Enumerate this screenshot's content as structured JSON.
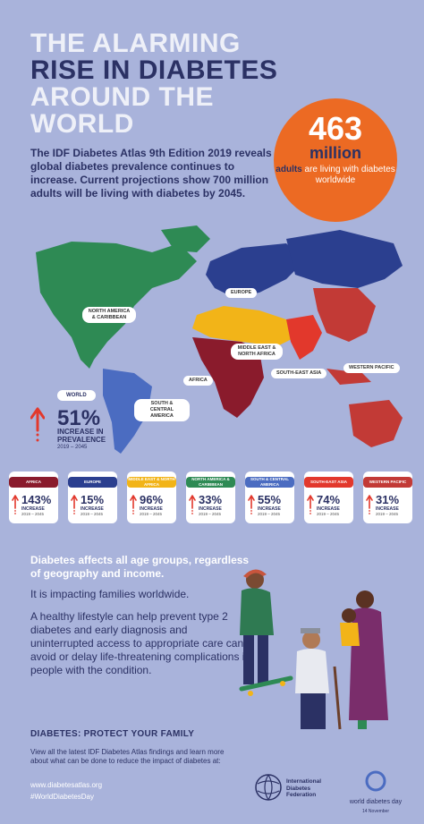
{
  "title": {
    "line1": "THE ALARMING",
    "line2": "RISE IN DIABETES",
    "line3": "AROUND THE",
    "line4": "WORLD"
  },
  "intro": "The IDF Diabetes Atlas 9th Edition 2019 reveals global diabetes prevalence continues to increase. Current projections show 700 million adults will be living with diabetes by 2045.",
  "stat": {
    "number": "463",
    "unit": "million",
    "desc_strong": "adults",
    "desc": "are living with diabetes worldwide"
  },
  "map_labels": {
    "north_america": "NORTH AMERICA & CARIBBEAN",
    "europe": "EUROPE",
    "mena": "MIDDLE EAST & NORTH AFRICA",
    "africa": "AFRICA",
    "south_america": "SOUTH & CENTRAL AMERICA",
    "sea": "SOUTH-EAST ASIA",
    "wp": "WESTERN PACIFIC"
  },
  "world": {
    "label": "WORLD",
    "pct": "51%",
    "inc": "INCREASE IN PREVALENCE",
    "years": "2019 – 2045"
  },
  "regions": [
    {
      "name": "AFRICA",
      "pct": "143%",
      "inc": "INCREASE",
      "years": "2019 – 2045",
      "color": "#8a1b2c"
    },
    {
      "name": "EUROPE",
      "pct": "15%",
      "inc": "INCREASE",
      "years": "2019 – 2045",
      "color": "#2b3f8f"
    },
    {
      "name": "MIDDLE EAST & NORTH AFRICA",
      "pct": "96%",
      "inc": "INCREASE",
      "years": "2019 – 2045",
      "color": "#f2b418"
    },
    {
      "name": "NORTH AMERICA & CARIBBEAN",
      "pct": "33%",
      "inc": "INCREASE",
      "years": "2019 – 2045",
      "color": "#2e8a54"
    },
    {
      "name": "SOUTH & CENTRAL AMERICA",
      "pct": "55%",
      "inc": "INCREASE",
      "years": "2019 – 2045",
      "color": "#4b6cc1"
    },
    {
      "name": "SOUTH-EAST ASIA",
      "pct": "74%",
      "inc": "INCREASE",
      "years": "2019 – 2045",
      "color": "#e2382c"
    },
    {
      "name": "WESTERN PACIFIC",
      "pct": "31%",
      "inc": "INCREASE",
      "years": "2019 – 2045",
      "color": "#c23a36"
    }
  ],
  "body": {
    "heading": "Diabetes affects all age groups, regardless of geography and income.",
    "p1": "It is impacting families worldwide.",
    "p2": "A healthy lifestyle can help prevent type 2 diabetes and early diagnosis and uninterrupted access to appropriate care can avoid or delay life-threatening complications in people with the condition."
  },
  "footer": {
    "heading": "DIABETES: PROTECT YOUR FAMILY",
    "text": "View all the latest IDF Diabetes Atlas findings and learn more about what can be done to reduce the impact of diabetes at:",
    "url": "www.diabetesatlas.org",
    "hashtag": "#WorldDiabetesDay"
  },
  "logos": {
    "idf_line1": "International",
    "idf_line2": "Diabetes",
    "idf_line3": "Federation",
    "wdd": "world diabetes day",
    "wdd_date": "14 November"
  },
  "colors": {
    "background": "#a9b3db",
    "navy": "#2b3164",
    "orange": "#ec6a23",
    "arrow": "#e2382c"
  }
}
